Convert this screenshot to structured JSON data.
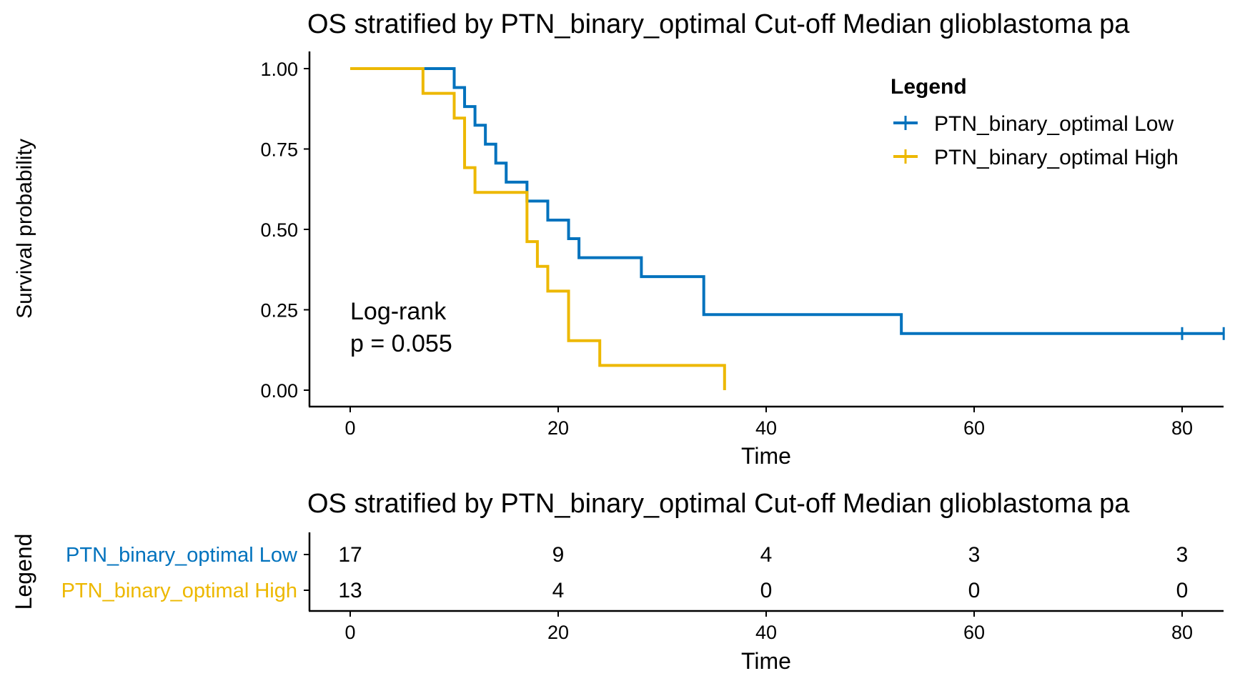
{
  "colors": {
    "low": "#0072BD",
    "high": "#EDB800",
    "axis": "#000000"
  },
  "chart_data": [
    {
      "type": "line",
      "subtype": "kaplan-meier",
      "title": "OS stratified by PTN_binary_optimal Cut-off Median glioblastoma pa",
      "xlabel": "Time",
      "ylabel": "Survival probability",
      "xlim": [
        -4,
        84
      ],
      "ylim": [
        -0.05,
        1.05
      ],
      "xticks": [
        0,
        20,
        40,
        60,
        80
      ],
      "xtick_labels": [
        "0",
        "20",
        "40",
        "60",
        "80"
      ],
      "yticks": [
        0,
        0.25,
        0.5,
        0.75,
        1
      ],
      "ytick_labels": [
        "0.00",
        "0.25",
        "0.50",
        "0.75",
        "1.00"
      ],
      "grid": false,
      "annotation": {
        "line1": "Log-rank",
        "line2": "p = 0.055"
      },
      "legend": {
        "title": "Legend",
        "position": "top-right",
        "entries": [
          "PTN_binary_optimal Low",
          "PTN_binary_optimal High"
        ]
      },
      "series": [
        {
          "name": "PTN_binary_optimal Low",
          "steps": [
            [
              0,
              1.0
            ],
            [
              10,
              0.941
            ],
            [
              11,
              0.882
            ],
            [
              12,
              0.824
            ],
            [
              13,
              0.765
            ],
            [
              14,
              0.706
            ],
            [
              15,
              0.647
            ],
            [
              17,
              0.588
            ],
            [
              19,
              0.529
            ],
            [
              21,
              0.471
            ],
            [
              22,
              0.412
            ],
            [
              28,
              0.353
            ],
            [
              34,
              0.235
            ],
            [
              53,
              0.176
            ]
          ],
          "end": 84,
          "censored": [
            [
              80,
              0.176
            ],
            [
              84,
              0.176
            ]
          ]
        },
        {
          "name": "PTN_binary_optimal High",
          "steps": [
            [
              0,
              1.0
            ],
            [
              7,
              0.923
            ],
            [
              10,
              0.846
            ],
            [
              11,
              0.692
            ],
            [
              12,
              0.615
            ],
            [
              17,
              0.462
            ],
            [
              18,
              0.385
            ],
            [
              19,
              0.308
            ],
            [
              21,
              0.154
            ],
            [
              24,
              0.077
            ],
            [
              36,
              0.0
            ]
          ],
          "end": 36,
          "censored": []
        }
      ]
    },
    {
      "type": "table",
      "title": "OS stratified by PTN_binary_optimal Cut-off Median glioblastoma pa",
      "xlabel": "Time",
      "ylabel": "Legend",
      "xticks": [
        0,
        20,
        40,
        60,
        80
      ],
      "xtick_labels": [
        "0",
        "20",
        "40",
        "60",
        "80"
      ],
      "rows": [
        {
          "name": "PTN_binary_optimal Low",
          "values": [
            "17",
            "9",
            "4",
            "3",
            "3"
          ]
        },
        {
          "name": "PTN_binary_optimal High",
          "values": [
            "13",
            "4",
            "0",
            "0",
            "0"
          ]
        }
      ]
    }
  ]
}
